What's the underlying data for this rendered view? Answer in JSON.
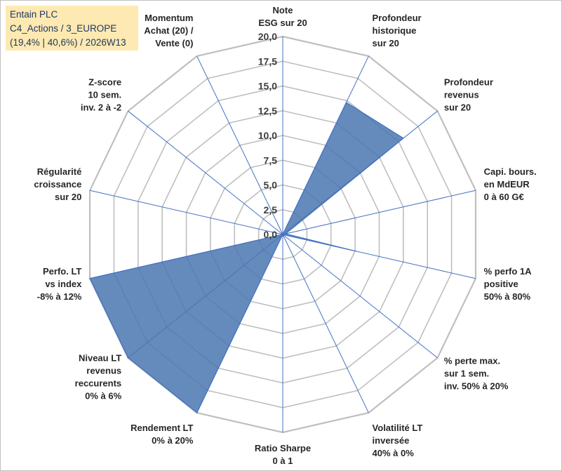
{
  "title_box": {
    "line1": "Entain PLC",
    "line2": "C4_Actions / 3_EUROPE",
    "line3": "(19,4% | 40,6%) / 2026W13"
  },
  "chart_data": {
    "type": "radar",
    "rmin": 0,
    "rmax": 20,
    "ticks": [
      "0,0",
      "2,5",
      "5,0",
      "7,5",
      "10,0",
      "12,5",
      "15,0",
      "17,5",
      "20,0"
    ],
    "grid": true,
    "axes": [
      {
        "label": [
          "Note",
          "ESG sur 20"
        ],
        "value": 0
      },
      {
        "label": [
          "Profondeur",
          "historique",
          "sur 20"
        ],
        "value": 14.8
      },
      {
        "label": [
          "Profondeur",
          "revenus",
          "sur 20"
        ],
        "value": 15.6
      },
      {
        "label": [
          "Capi. bours.",
          "en MdEUR",
          "0 à 60 G€"
        ],
        "value": 0.3
      },
      {
        "label": [
          "% perfo 1A",
          "positive",
          "50% à 80%"
        ],
        "value": 7.5
      },
      {
        "label": [
          "% perte max.",
          "sur 1 sem.",
          "inv. 50% à 20%"
        ],
        "value": 0
      },
      {
        "label": [
          "Volatilité LT",
          "inversée",
          "40% à 0%"
        ],
        "value": 0
      },
      {
        "label": [
          "Ratio Sharpe",
          "0 à 1"
        ],
        "value": 0
      },
      {
        "label": [
          "Rendement LT",
          "0% à 20%"
        ],
        "value": 20
      },
      {
        "label": [
          "Niveau LT",
          "revenus",
          "reccurents",
          "0% à 6%"
        ],
        "value": 20
      },
      {
        "label": [
          "Perfo. LT",
          "vs index",
          "-8% à 12%"
        ],
        "value": 20
      },
      {
        "label": [
          "Régularité",
          "croissance",
          "sur 20"
        ],
        "value": 0
      },
      {
        "label": [
          "Z-score",
          "10 sem.",
          "inv. 2 à -2"
        ],
        "value": 0
      },
      {
        "label": [
          "Momentum",
          "Achat (20) /",
          "Vente (0)"
        ],
        "value": 0
      }
    ],
    "colors": {
      "fill": "#4a76b0",
      "stroke": "#4472c4",
      "grid": "#bfbfbf",
      "spoke": "#4472c4"
    }
  }
}
